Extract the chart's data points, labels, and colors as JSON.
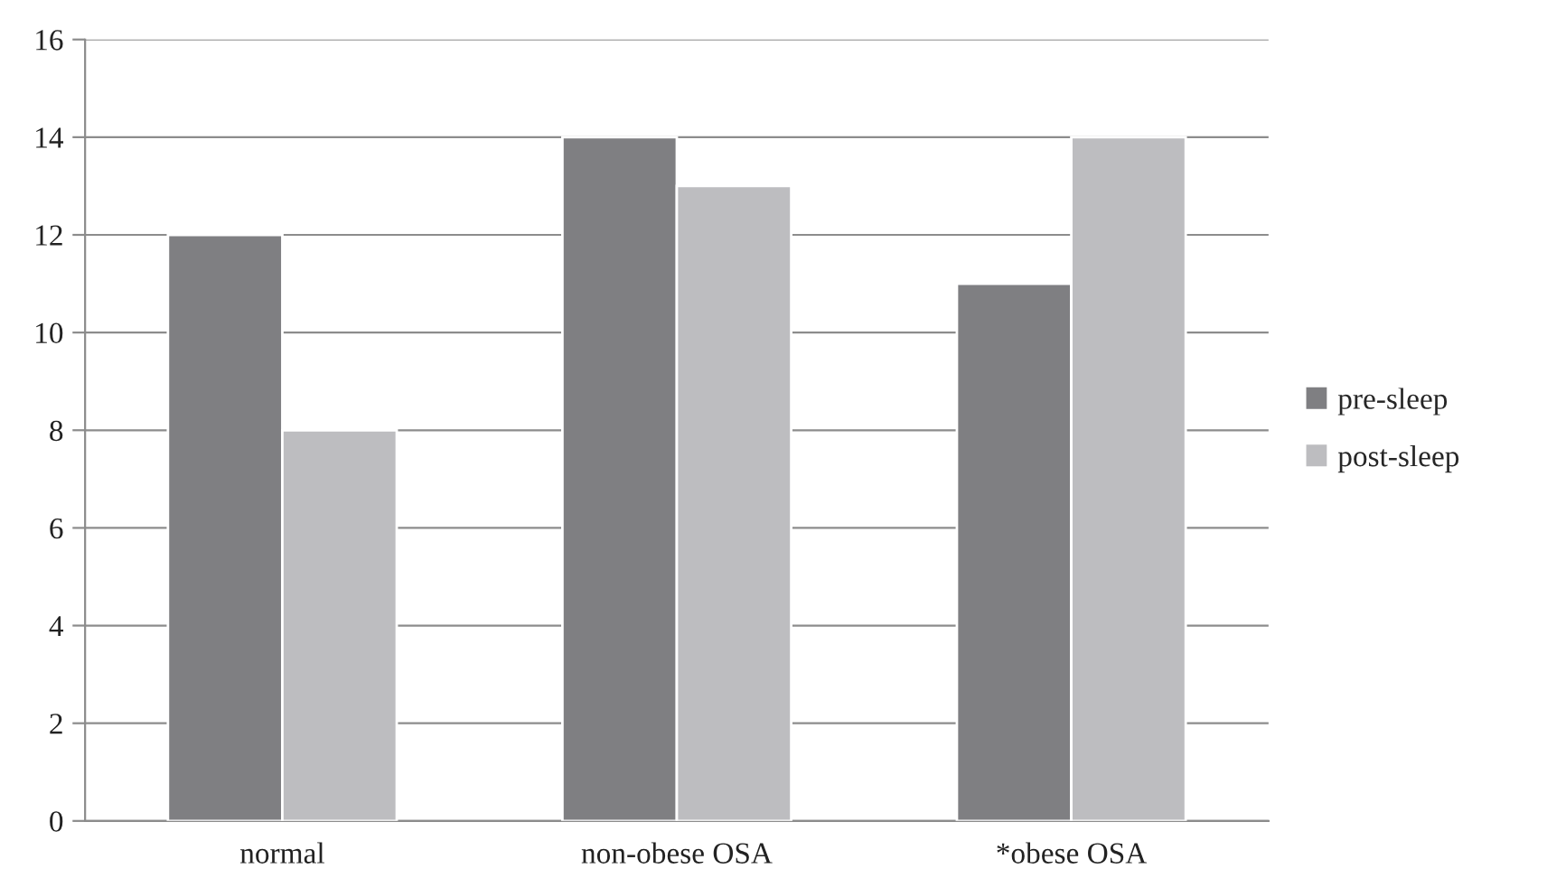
{
  "chart_data": {
    "type": "bar",
    "categories": [
      "normal",
      "non-obese OSA",
      "*obese OSA"
    ],
    "series": [
      {
        "name": "pre-sleep",
        "color": "#7f7f82",
        "values": [
          12,
          14,
          11
        ]
      },
      {
        "name": "post-sleep",
        "color": "#bdbdc0",
        "values": [
          8,
          13,
          14
        ]
      }
    ],
    "ylim": [
      0,
      16
    ],
    "yticks": [
      0,
      2,
      4,
      6,
      8,
      10,
      12,
      14,
      16
    ],
    "grid": "y",
    "legend": "right"
  }
}
